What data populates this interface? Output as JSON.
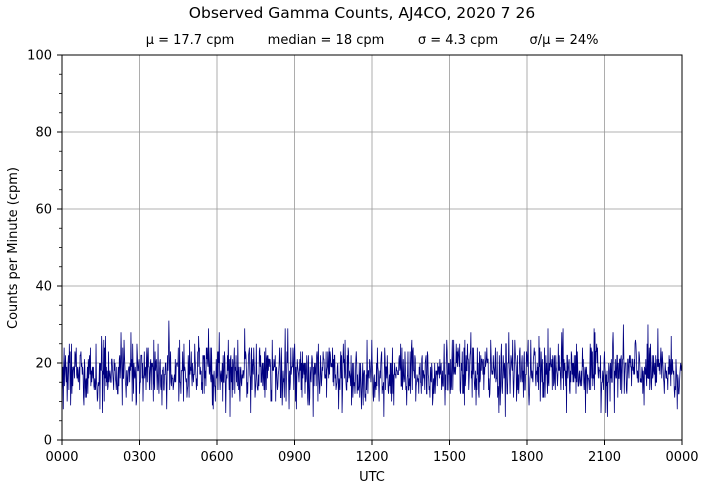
{
  "chart_data": {
    "type": "line",
    "title": "Observed Gamma Counts, AJ4CO, 2020 7 26",
    "stats": [
      "μ = 17.7 cpm",
      "median = 18 cpm",
      "σ = 4.3 cpm",
      "σ/μ = 24%"
    ],
    "xlabel": "UTC",
    "ylabel": "Counts per Minute (cpm)",
    "xlim": [
      "00:00",
      "24:00"
    ],
    "ylim": [
      0,
      100
    ],
    "x_ticks": [
      "0000",
      "0300",
      "0600",
      "0900",
      "1200",
      "1500",
      "1800",
      "2100",
      "0000"
    ],
    "y_ticks": [
      "0",
      "20",
      "40",
      "60",
      "80",
      "100"
    ],
    "grid": true,
    "series": [
      {
        "color": "#000080",
        "sampling": "1 minute",
        "mean": 17.7,
        "median": 18,
        "stdev": 4.3,
        "min": 6,
        "max": 32
      }
    ]
  }
}
